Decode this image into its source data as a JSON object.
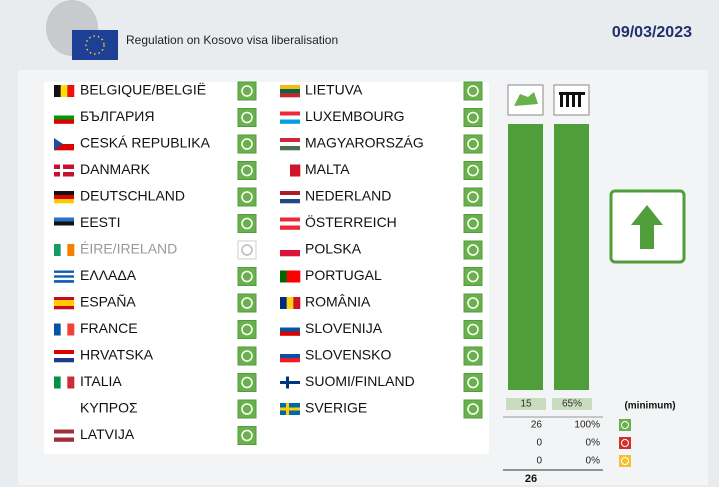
{
  "header": {
    "title": "Regulation on Kosovo visa liberalisation",
    "date": "09/03/2023"
  },
  "left": [
    {
      "name": "BELGIQUE/BELGIË",
      "color": "#6ab04c"
    },
    {
      "name": "БЪЛГАРИЯ",
      "color": "#6ab04c"
    },
    {
      "name": "CESKÁ REPUBLIKA",
      "color": "#6ab04c"
    },
    {
      "name": "DANMARK",
      "color": "#6ab04c"
    },
    {
      "name": "DEUTSCHLAND",
      "color": "#6ab04c"
    },
    {
      "name": "EESTI",
      "color": "#6ab04c"
    },
    {
      "name": "ÉIRE/IRELAND",
      "color": "#c8c8c8"
    },
    {
      "name": "ΕΛΛΑΔΑ",
      "color": "#6ab04c"
    },
    {
      "name": "ESPAÑA",
      "color": "#6ab04c"
    },
    {
      "name": "FRANCE",
      "color": "#6ab04c"
    },
    {
      "name": "HRVATSKA",
      "color": "#6ab04c"
    },
    {
      "name": "ITALIA",
      "color": "#6ab04c"
    },
    {
      "name": "ΚΥΠΡΟΣ",
      "color": "#6ab04c"
    },
    {
      "name": "LATVIJA",
      "color": "#6ab04c"
    }
  ],
  "right": [
    {
      "name": "LIETUVA",
      "color": "#6ab04c"
    },
    {
      "name": "LUXEMBOURG",
      "color": "#6ab04c"
    },
    {
      "name": "MAGYARORSZÁG",
      "color": "#6ab04c"
    },
    {
      "name": "MALTA",
      "color": "#6ab04c"
    },
    {
      "name": "NEDERLAND",
      "color": "#6ab04c"
    },
    {
      "name": "ÖSTERREICH",
      "color": "#6ab04c"
    },
    {
      "name": "POLSKA",
      "color": "#6ab04c"
    },
    {
      "name": "PORTUGAL",
      "color": "#6ab04c"
    },
    {
      "name": "ROMÂNIA",
      "color": "#6ab04c"
    },
    {
      "name": "SLOVENIJA",
      "color": "#6ab04c"
    },
    {
      "name": "SLOVENSKO",
      "color": "#6ab04c"
    },
    {
      "name": "SUOMI/FINLAND",
      "color": "#6ab04c"
    },
    {
      "name": "SVERIGE",
      "color": "#6ab04c"
    }
  ],
  "results": {
    "threshold": [
      "15",
      "65%",
      "(minimum)"
    ],
    "rows": [
      {
        "count": "26",
        "percent": "100%",
        "color": "#6ab04c"
      },
      {
        "count": "0",
        "percent": "0%",
        "color": "#d0312d"
      },
      {
        "count": "0",
        "percent": "0%",
        "color": "#f2c230"
      }
    ],
    "total": "26"
  }
}
